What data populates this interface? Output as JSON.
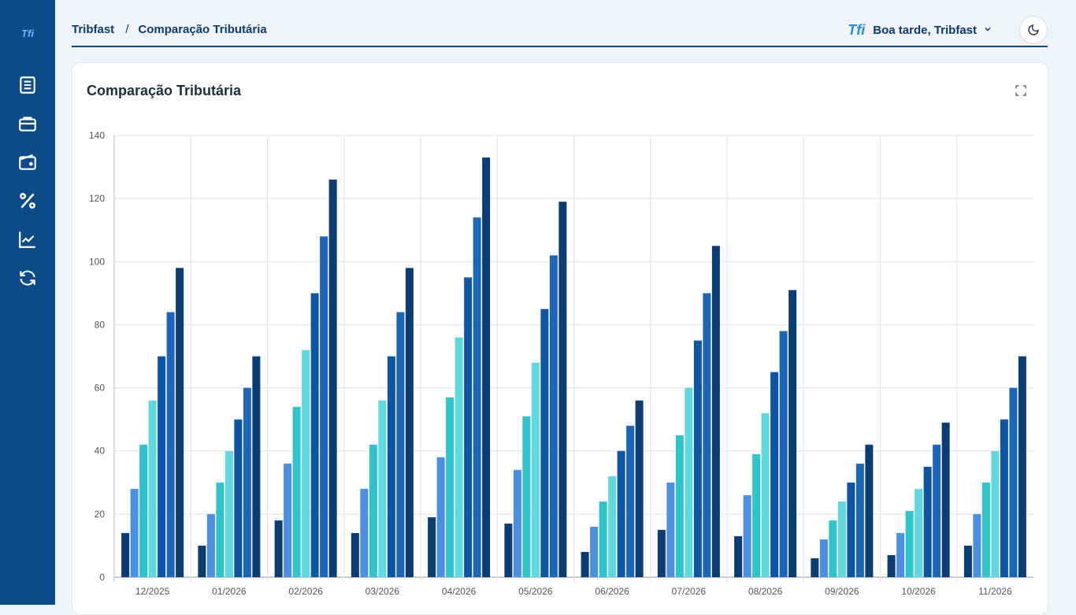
{
  "sidebar": {
    "logo": "Tfi",
    "items": [
      {
        "icon": "book-icon"
      },
      {
        "icon": "briefcase-icon"
      },
      {
        "icon": "wallet-icon"
      },
      {
        "icon": "percent-icon"
      },
      {
        "icon": "chart-line-icon"
      },
      {
        "icon": "refresh-icon"
      }
    ]
  },
  "header": {
    "breadcrumb_root": "Tribfast",
    "breadcrumb_sep": "/",
    "breadcrumb_current": "Comparação Tributária",
    "logo_text": "Tfi",
    "greeting": "Boa tarde, Tribfast"
  },
  "card": {
    "title": "Comparação Tributária"
  },
  "colors": {
    "sidebar": "#0d4a8a",
    "series": [
      "#0b3c73",
      "#4a8fe0",
      "#2ec4cc",
      "#5fd8e0",
      "#0e55a6",
      "#1b66b8"
    ]
  },
  "chart_data": {
    "type": "bar",
    "categories": [
      "12/2025",
      "01/2026",
      "02/2026",
      "03/2026",
      "04/2026",
      "05/2026",
      "06/2026",
      "07/2026",
      "08/2026",
      "09/2026",
      "10/2026",
      "11/2026"
    ],
    "series": [
      {
        "values": [
          14,
          10,
          18,
          14,
          19,
          17,
          8,
          15,
          13,
          6,
          7,
          10
        ]
      },
      {
        "values": [
          28,
          20,
          36,
          28,
          38,
          34,
          16,
          30,
          26,
          12,
          14,
          20
        ]
      },
      {
        "values": [
          42,
          30,
          54,
          42,
          57,
          51,
          24,
          45,
          39,
          18,
          21,
          30
        ]
      },
      {
        "values": [
          56,
          40,
          72,
          56,
          76,
          68,
          32,
          60,
          52,
          24,
          28,
          40
        ]
      },
      {
        "values": [
          70,
          50,
          90,
          70,
          95,
          85,
          40,
          75,
          65,
          30,
          35,
          50
        ]
      },
      {
        "values": [
          84,
          60,
          108,
          84,
          114,
          102,
          48,
          90,
          78,
          36,
          42,
          60
        ]
      },
      {
        "values": [
          98,
          70,
          126,
          98,
          133,
          119,
          56,
          105,
          91,
          42,
          49,
          70
        ]
      }
    ],
    "ylim": [
      0,
      140
    ],
    "yticks": [
      0,
      20,
      40,
      60,
      80,
      100,
      120,
      140
    ],
    "grid": true
  }
}
